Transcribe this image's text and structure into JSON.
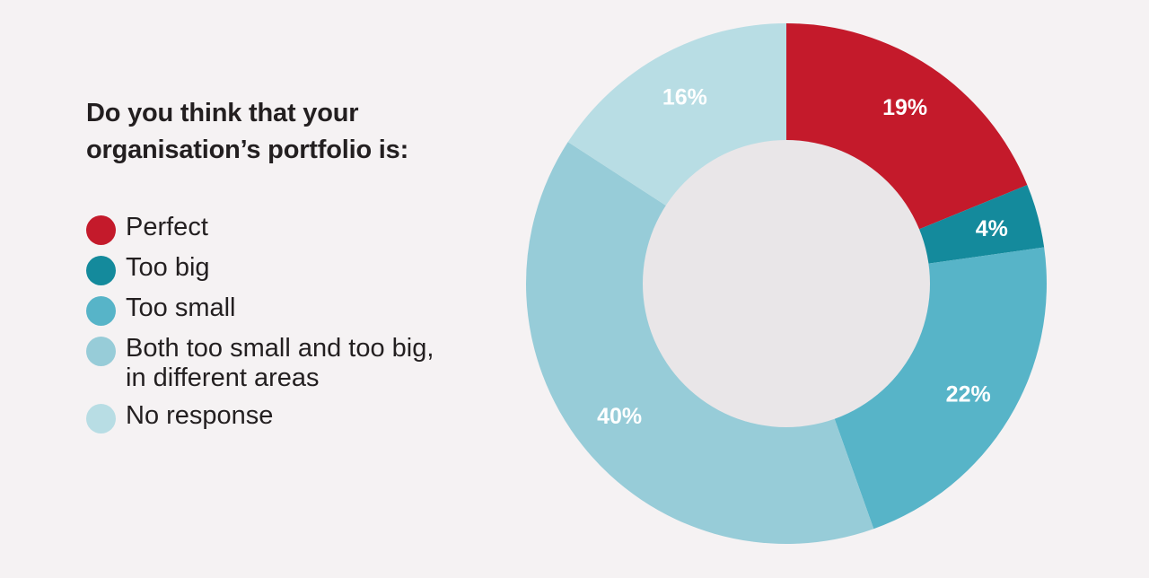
{
  "title": "Do you think that your\norganisation’s portfolio is:",
  "chart_data": {
    "type": "pie",
    "title": "Do you think that your organisation’s portfolio is:",
    "categories": [
      "Perfect",
      "Too big",
      "Too small",
      "Both too small and too big,\nin different areas",
      "No response"
    ],
    "values": [
      19,
      4,
      22,
      40,
      16
    ],
    "labels": [
      "19%",
      "4%",
      "22%",
      "40%",
      "16%"
    ],
    "colors": [
      "#c41a2b",
      "#148a9c",
      "#57b4c8",
      "#97ccd8",
      "#b8dde4"
    ],
    "donut": true,
    "legend_position": "left"
  }
}
